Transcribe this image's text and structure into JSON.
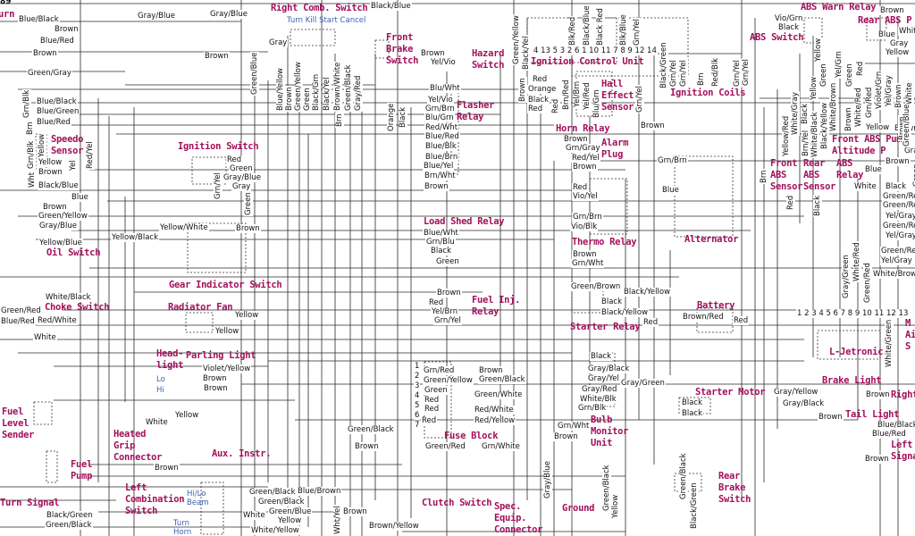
{
  "page_id": "89",
  "colors": {
    "component_label": "#a3105c",
    "sub_label": "#3a63b8",
    "wire": "#2a2a2a"
  },
  "components": [
    {
      "label": "Turn"
    },
    {
      "label": "Right Comb. Switch"
    },
    {
      "label": "Front\nBrake\nSwitch"
    },
    {
      "label": "Hazard\nSwitch"
    },
    {
      "label": "Ignition Control Unit"
    },
    {
      "label": "Hall\nEffect\nSensor"
    },
    {
      "label": "Flasher\nRelay"
    },
    {
      "label": "Ignition Coils"
    },
    {
      "label": "ABS Warn Relay"
    },
    {
      "label": "Rear ABS P"
    },
    {
      "label": "ABS Switch"
    },
    {
      "label": "Horn Relay"
    },
    {
      "label": "Alarm\nPlug"
    },
    {
      "label": "Speedo\nSensor"
    },
    {
      "label": "Ignition Switch"
    },
    {
      "label": "Front\nABS\nSensor"
    },
    {
      "label": "Rear\nABS\nSensor"
    },
    {
      "label": "ABS\nRelay"
    },
    {
      "label": "Front ABS Pum\nAltitude P"
    },
    {
      "label": "Alternator"
    },
    {
      "label": "Load Shed Relay"
    },
    {
      "label": "Thermo Relay"
    },
    {
      "label": "Oil Switch"
    },
    {
      "label": "Gear Indicator Switch"
    },
    {
      "label": "Choke Switch"
    },
    {
      "label": "Radiator Fan"
    },
    {
      "label": "Fuel Inj.\nRelay"
    },
    {
      "label": "Starter Relay"
    },
    {
      "label": "Battery"
    },
    {
      "label": "L-Jetronic"
    },
    {
      "label": "Head-\nlight"
    },
    {
      "label": "Parling Light"
    },
    {
      "label": "Fuse Block"
    },
    {
      "label": "Bulb\nMonitor\nUnit"
    },
    {
      "label": "Starter Motor"
    },
    {
      "label": "Brake Light"
    },
    {
      "label": "Tail Light"
    },
    {
      "label": "Right"
    },
    {
      "label": "Fuel\nLevel\nSender"
    },
    {
      "label": "Heated\nGrip\nConnector"
    },
    {
      "label": "Aux. Instr."
    },
    {
      "label": "Fuel\nPump"
    },
    {
      "label": "Left\nCombination\nSwitch"
    },
    {
      "label": "Turn Signal"
    },
    {
      "label": "Clutch Switch"
    },
    {
      "label": "Spec.\nEquip.\nConnector"
    },
    {
      "label": "Ground"
    },
    {
      "label": "Rear\nBrake\nSwitch"
    },
    {
      "label": "Left R\nSignal"
    },
    {
      "label": "M\nAi\nS"
    }
  ],
  "sub_labels": [
    {
      "label": "Turn Kill Start Cancel"
    },
    {
      "label": "Lo"
    },
    {
      "label": "Hi"
    },
    {
      "label": "Hi/Lo\nBeam"
    },
    {
      "label": "Turn\nHorn"
    }
  ],
  "wire_labels": [
    {
      "text": "Blue/Black"
    },
    {
      "text": "Brown"
    },
    {
      "text": "Blue/Red"
    },
    {
      "text": "Brown"
    },
    {
      "text": "Green/Gray"
    },
    {
      "text": "Gray/Blue"
    },
    {
      "text": "Gray/Blue"
    },
    {
      "text": "Brown"
    },
    {
      "text": "Black/Blue"
    },
    {
      "text": "Gray"
    },
    {
      "text": "Blue/Green"
    },
    {
      "text": "Blue/Red"
    },
    {
      "text": "Blue/Black"
    },
    {
      "text": "Yellow"
    },
    {
      "text": "Brown"
    },
    {
      "text": "Black/Blue"
    },
    {
      "text": "Blue"
    },
    {
      "text": "Brown"
    },
    {
      "text": "Green/Yellow"
    },
    {
      "text": "Gray/Blue"
    },
    {
      "text": "Yellow/Blue"
    },
    {
      "text": "Yellow/Black"
    },
    {
      "text": "Yellow/White"
    },
    {
      "text": "Brown"
    },
    {
      "text": "Red"
    },
    {
      "text": "Green"
    },
    {
      "text": "Gray/Blue"
    },
    {
      "text": "Gray"
    },
    {
      "text": "Brown"
    },
    {
      "text": "Yel/Vio"
    },
    {
      "text": "Blu/Wht"
    },
    {
      "text": "Yel/Vio"
    },
    {
      "text": "Grn/Brn"
    },
    {
      "text": "Blu/Grn"
    },
    {
      "text": "Red/Wht"
    },
    {
      "text": "Blue/Red"
    },
    {
      "text": "Blue/Blk"
    },
    {
      "text": "Blue/Brn"
    },
    {
      "text": "Blue/Yel"
    },
    {
      "text": "Brn/Wht"
    },
    {
      "text": "Brown"
    },
    {
      "text": "Blue/Wht"
    },
    {
      "text": "Grn/Blu"
    },
    {
      "text": "Black"
    },
    {
      "text": "Green"
    },
    {
      "text": "Red"
    },
    {
      "text": "Orange"
    },
    {
      "text": "Black"
    },
    {
      "text": "Red"
    },
    {
      "text": "Brown"
    },
    {
      "text": "Brown"
    },
    {
      "text": "Grn/Gray"
    },
    {
      "text": "Red/Yel"
    },
    {
      "text": "Brown"
    },
    {
      "text": "Grn/Brn"
    },
    {
      "text": "Blue"
    },
    {
      "text": "Red"
    },
    {
      "text": "Vio/Yel"
    },
    {
      "text": "Grn/Brn"
    },
    {
      "text": "Vio/Blk"
    },
    {
      "text": "Brown"
    },
    {
      "text": "Grn/Wht"
    },
    {
      "text": "Vio/Grn"
    },
    {
      "text": "Black"
    },
    {
      "text": "Brown"
    },
    {
      "text": "White"
    },
    {
      "text": "Blue"
    },
    {
      "text": "Gray"
    },
    {
      "text": "Yellow"
    },
    {
      "text": "Brown"
    },
    {
      "text": "Yellow"
    },
    {
      "text": "Brown"
    },
    {
      "text": "Gray"
    },
    {
      "text": "Blue"
    },
    {
      "text": "White"
    },
    {
      "text": "Black"
    },
    {
      "text": "Green/Red"
    },
    {
      "text": "Green/Red"
    },
    {
      "text": "Yel/Gray"
    },
    {
      "text": "Green/Red"
    },
    {
      "text": "Yel/Gray"
    },
    {
      "text": "Green/Red"
    },
    {
      "text": "Yel/Gray"
    },
    {
      "text": "White/Brown"
    },
    {
      "text": "White/Black"
    },
    {
      "text": "Green/Red"
    },
    {
      "text": "Red/White"
    },
    {
      "text": "White"
    },
    {
      "text": "Yellow"
    },
    {
      "text": "Yellow"
    },
    {
      "text": "Violet/Yellow"
    },
    {
      "text": "Brown"
    },
    {
      "text": "Brown"
    },
    {
      "text": "Yellow"
    },
    {
      "text": "White"
    },
    {
      "text": "Brown"
    },
    {
      "text": "Green/Black"
    },
    {
      "text": "Green/Black"
    },
    {
      "text": "Green/Blue"
    },
    {
      "text": "White"
    },
    {
      "text": "Yellow"
    },
    {
      "text": "White/Yellow"
    },
    {
      "text": "Blue/Brown"
    },
    {
      "text": "Brown"
    },
    {
      "text": "Brown/Yellow"
    },
    {
      "text": "Black/Green"
    },
    {
      "text": "Green/Black"
    },
    {
      "text": "Blue/Red"
    },
    {
      "text": "Brown"
    },
    {
      "text": "Red"
    },
    {
      "text": "Yel/Brn"
    },
    {
      "text": "Grn/Yel"
    },
    {
      "text": "Grn/Red"
    },
    {
      "text": "Green/Yellow"
    },
    {
      "text": "Green"
    },
    {
      "text": "Red"
    },
    {
      "text": "Red"
    },
    {
      "text": "Red"
    },
    {
      "text": "Green/Red"
    },
    {
      "text": "Green/Black"
    },
    {
      "text": "Brown"
    },
    {
      "text": "Brown"
    },
    {
      "text": "Green/Black"
    },
    {
      "text": "Green/White"
    },
    {
      "text": "Red/White"
    },
    {
      "text": "Red/Yellow"
    },
    {
      "text": "Grn/White"
    },
    {
      "text": "Green/Brown"
    },
    {
      "text": "Black/Yellow"
    },
    {
      "text": "Black"
    },
    {
      "text": "Black/Yellow"
    },
    {
      "text": "Brown/Red"
    },
    {
      "text": "Red"
    },
    {
      "text": "Red"
    },
    {
      "text": "Black"
    },
    {
      "text": "Gray/Black"
    },
    {
      "text": "Gray/Yel"
    },
    {
      "text": "Gray/Red"
    },
    {
      "text": "White/Blk"
    },
    {
      "text": "Grn/Blk"
    },
    {
      "text": "Grn/Wht"
    },
    {
      "text": "Brown"
    },
    {
      "text": "Gray/Green"
    },
    {
      "text": "Black"
    },
    {
      "text": "Black"
    },
    {
      "text": "Gray/Yellow"
    },
    {
      "text": "Gray/Black"
    },
    {
      "text": "Brown"
    },
    {
      "text": "Brown"
    },
    {
      "text": "Blue/Black"
    },
    {
      "text": "Blue/Red"
    },
    {
      "text": "Brown"
    },
    {
      "text": "Green/Red"
    },
    {
      "text": "White/Red"
    },
    {
      "text": "White/Green"
    },
    {
      "text": "Gray/Green"
    },
    {
      "text": "Green/Black"
    },
    {
      "text": "Yellow"
    },
    {
      "text": "Green/Black"
    },
    {
      "text": "Black/Green"
    },
    {
      "text": "Wht/Yel"
    },
    {
      "text": "Gray/Blue"
    },
    {
      "text": "Green/Blue"
    },
    {
      "text": "Blue/Yellow"
    },
    {
      "text": "Brown"
    },
    {
      "text": "Green/Yellow"
    },
    {
      "text": "Green"
    },
    {
      "text": "Black/Grn"
    },
    {
      "text": "Black/Yel"
    },
    {
      "text": "Brown/White"
    },
    {
      "text": "Green/Black"
    },
    {
      "text": "Gray/Red"
    },
    {
      "text": "Brn"
    },
    {
      "text": "Orange"
    },
    {
      "text": "Black"
    },
    {
      "text": "Red"
    },
    {
      "text": "Black/Yel"
    },
    {
      "text": "Brown"
    },
    {
      "text": "Green/Yellow"
    },
    {
      "text": "Brn/Red"
    },
    {
      "text": "Yel/Brn"
    },
    {
      "text": "Yel/Red"
    },
    {
      "text": "Blu/Grn"
    },
    {
      "text": "Blk/Red"
    },
    {
      "text": "Blk/Blue"
    },
    {
      "text": "Black/Blue"
    },
    {
      "text": "Grn/Yel"
    },
    {
      "text": "Black Red"
    },
    {
      "text": "Grn/Yel"
    },
    {
      "text": "Black/Green"
    },
    {
      "text": "Grn/Yel"
    },
    {
      "text": "Grn/Yel"
    },
    {
      "text": "Brn"
    },
    {
      "text": "Red/Blk"
    },
    {
      "text": "Grn/Yel"
    },
    {
      "text": "Grn/Yel"
    },
    {
      "text": "Green"
    },
    {
      "text": "Yel/Grn"
    },
    {
      "text": "Green"
    },
    {
      "text": "Red"
    },
    {
      "text": "Brn"
    },
    {
      "text": "Red"
    },
    {
      "text": "Brn/Yel"
    },
    {
      "text": "Yellow/Red"
    },
    {
      "text": "White/Black"
    },
    {
      "text": "White/Brown"
    },
    {
      "text": "Black/Yellow"
    },
    {
      "text": "Brown"
    },
    {
      "text": "Black"
    },
    {
      "text": "White/Gray"
    },
    {
      "text": "White/Red"
    },
    {
      "text": "Grn/Red"
    },
    {
      "text": "Violet/Grn"
    },
    {
      "text": "Yel/Gray"
    },
    {
      "text": "Brown"
    },
    {
      "text": "White"
    },
    {
      "text": "Yellow"
    },
    {
      "text": "Brown"
    },
    {
      "text": "Green"
    },
    {
      "text": "Black"
    },
    {
      "text": "Yellow"
    },
    {
      "text": "Brown"
    },
    {
      "text": "Green/Blue"
    },
    {
      "text": "Yellow"
    },
    {
      "text": "Grn/Blk"
    },
    {
      "text": "Wht"
    },
    {
      "text": "Red/Yel"
    },
    {
      "text": "Yel"
    },
    {
      "text": "Brn"
    },
    {
      "text": "Grn/Blk"
    },
    {
      "text": "Grn/Yel"
    },
    {
      "text": "Green"
    }
  ],
  "connector_numbers": {
    "ignition_control_unit": "4 13 5 3 2 6 1 10 11 7 8 9 12 14",
    "l_jetronic": "1 2 3 4 5 6 7 8 9 10 11 12 13",
    "fuse_block": [
      "1",
      "2",
      "3",
      "4",
      "5",
      "6",
      "7"
    ]
  }
}
